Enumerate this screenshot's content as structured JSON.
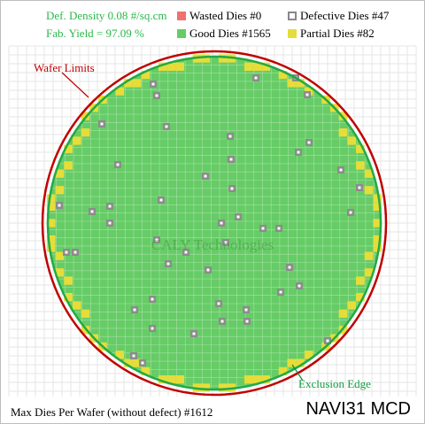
{
  "legend": {
    "defect_density": "Def. Density 0.08 #/sq.cm",
    "fab_yield": "Fab. Yield = 97.09 %",
    "wasted": "Wasted Dies  #0",
    "good": "Good Dies #1565",
    "defective": "Defective Dies  #47",
    "partial": "Partial Dies #82"
  },
  "labels": {
    "wafer_limits": "Wafer Limits",
    "exclusion_edge": "Exclusion Edge",
    "watermark": "CALY Technologies"
  },
  "footer": {
    "max_dies": "Max Dies Per Wafer (without defect) #1612",
    "product": "NAVI31 MCD"
  },
  "colors": {
    "good": "#66cc66",
    "wasted": "#f07070",
    "partial": "#e6dd3a",
    "defective": "#888888",
    "wafer_limit": "#c00000",
    "exclusion": "#22aa44",
    "legend_text": "#2bb84a"
  },
  "icons": {
    "wasted": "square-swatch-red",
    "good": "square-swatch-green",
    "defective": "square-outline-swatch-gray",
    "partial": "square-swatch-yellow"
  }
}
